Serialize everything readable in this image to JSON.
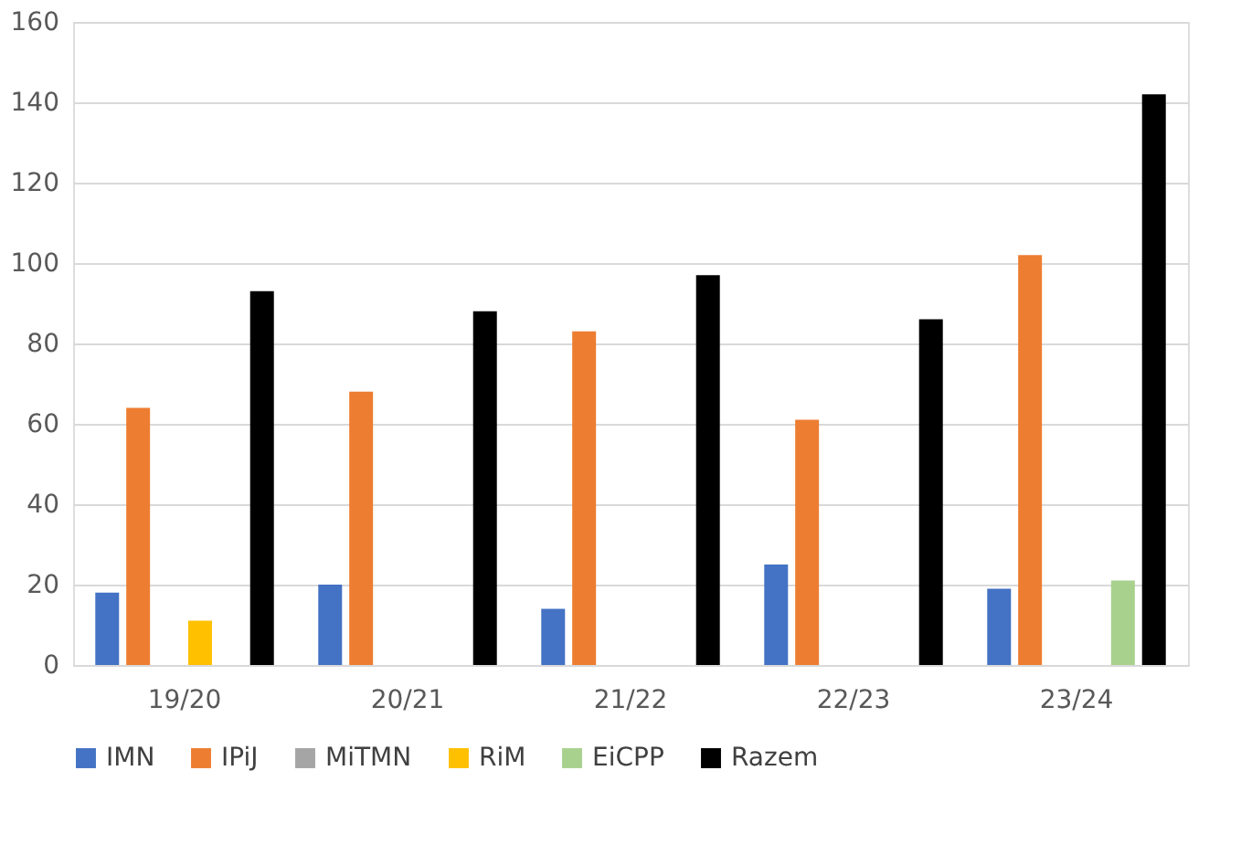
{
  "chart_data": {
    "type": "bar",
    "categories": [
      "19/20",
      "20/21",
      "21/22",
      "22/23",
      "23/24"
    ],
    "series": [
      {
        "name": "IMN",
        "color": "#4472c4",
        "values": [
          18,
          20,
          14,
          25,
          19
        ]
      },
      {
        "name": "IPiJ",
        "color": "#ed7d31",
        "values": [
          64,
          68,
          83,
          61,
          102
        ]
      },
      {
        "name": "MiTMN",
        "color": "#a5a5a5",
        "values": [
          0,
          0,
          0,
          0,
          0
        ]
      },
      {
        "name": "RiM",
        "color": "#ffc000",
        "values": [
          11,
          0,
          0,
          0,
          0
        ]
      },
      {
        "name": "EiCPP",
        "color": "#a9d18e",
        "values": [
          0,
          0,
          0,
          0,
          21
        ]
      },
      {
        "name": "Razem",
        "color": "#000000",
        "values": [
          93,
          88,
          97,
          86,
          142
        ]
      }
    ],
    "ylim": [
      0,
      160
    ],
    "yticks": [
      0,
      20,
      40,
      60,
      80,
      100,
      120,
      140,
      160
    ],
    "grid": "y",
    "legend": "bottom"
  }
}
